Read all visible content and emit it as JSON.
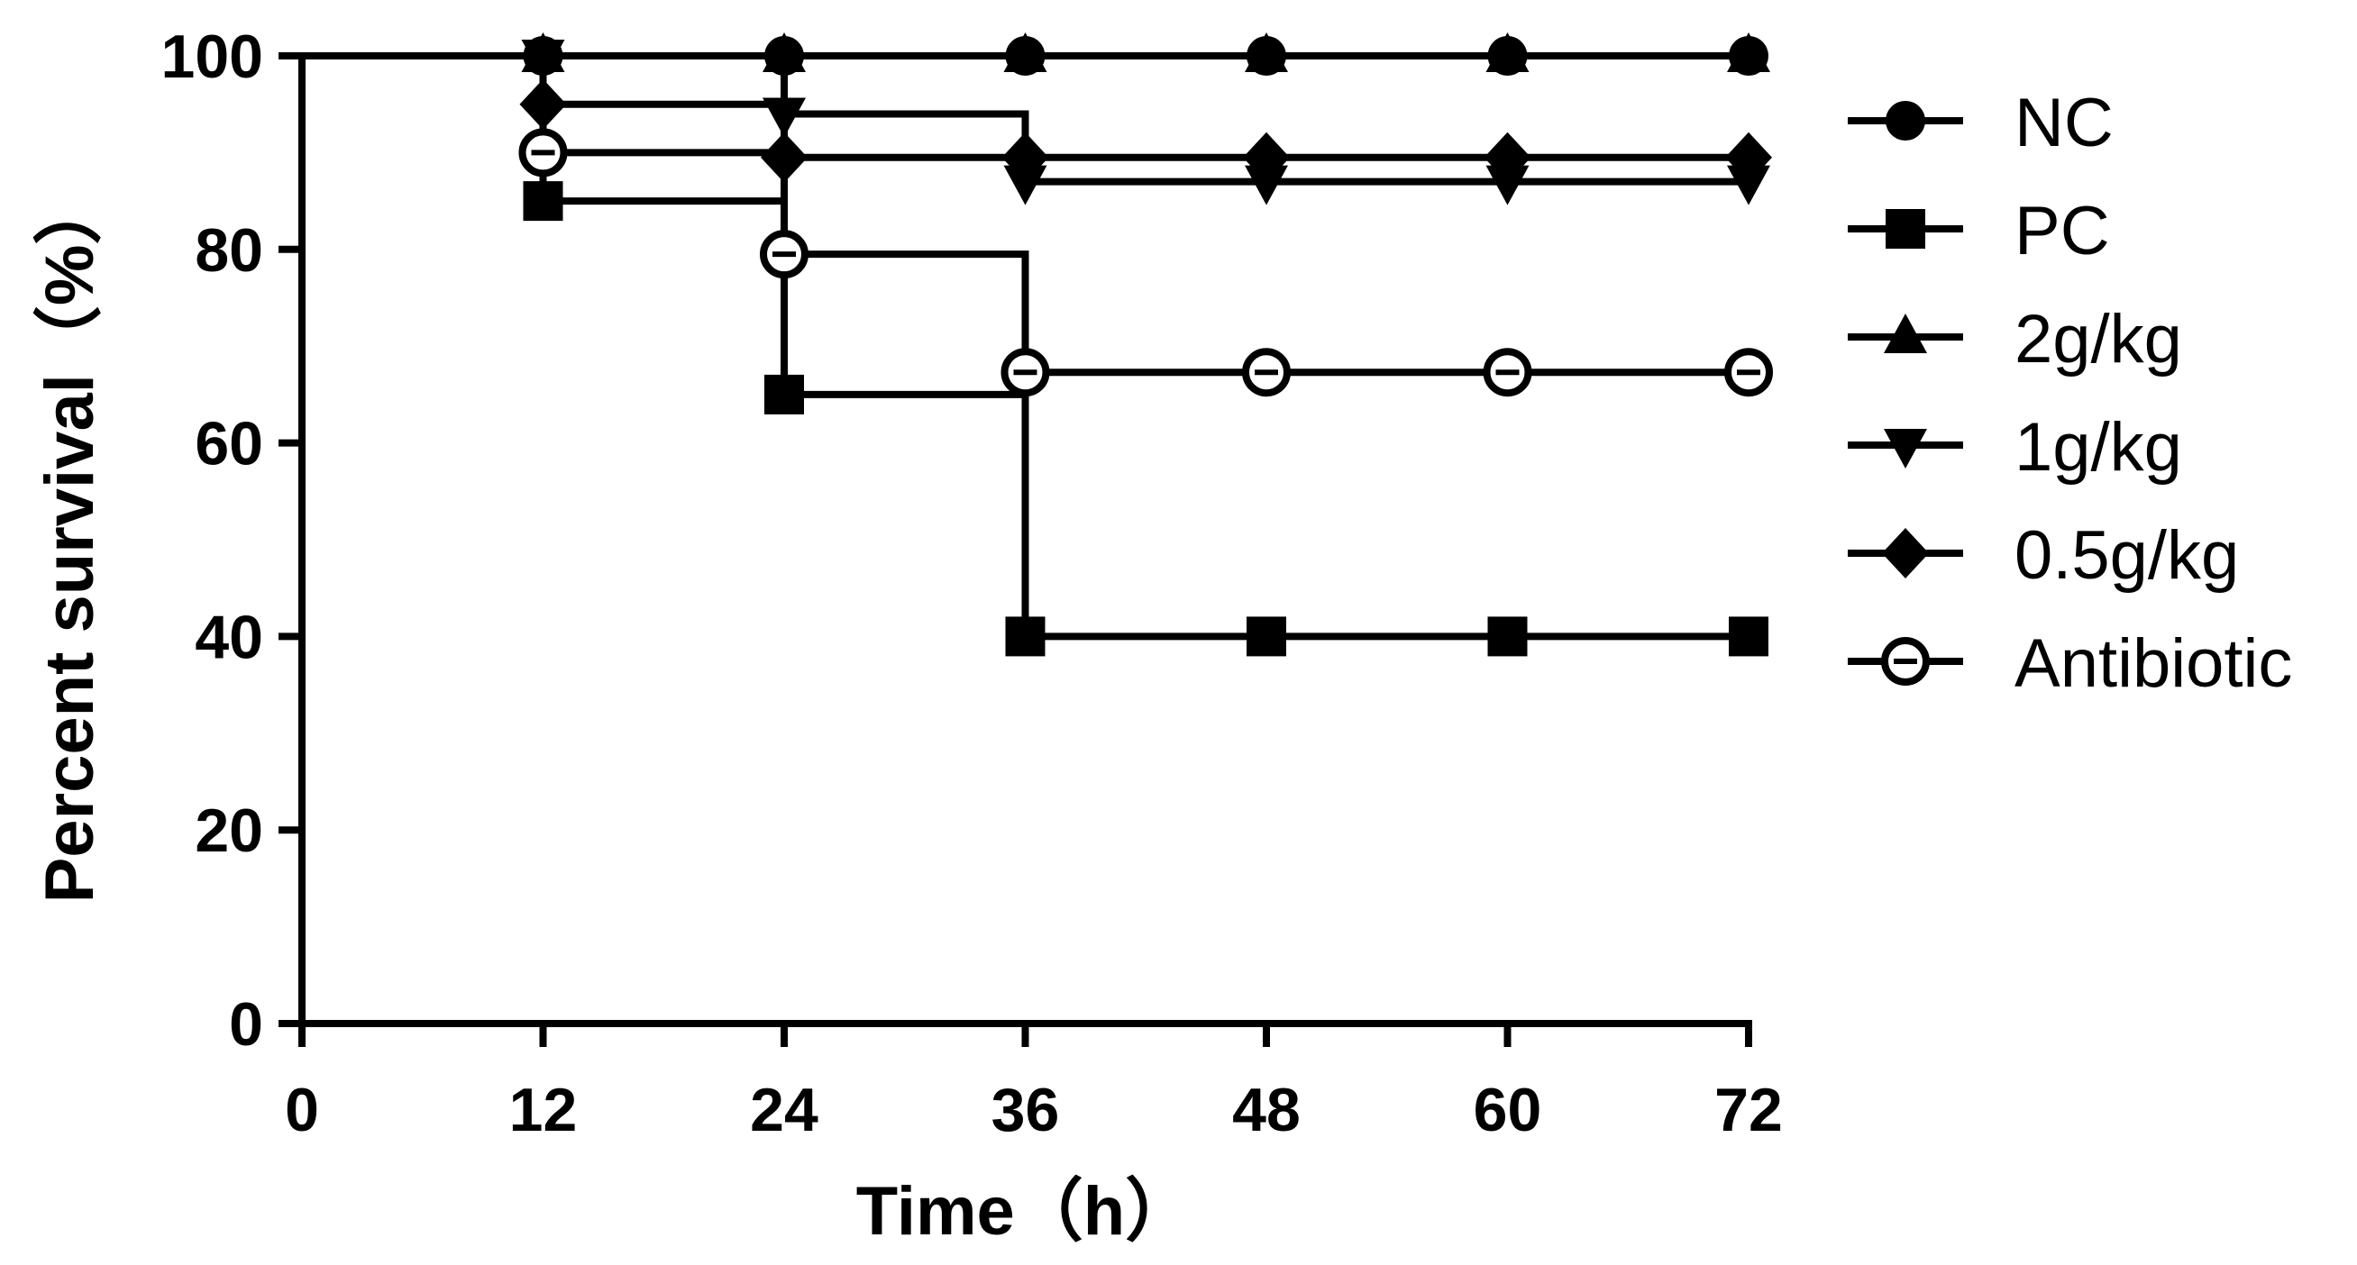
{
  "chart_data": {
    "type": "line",
    "subtype": "kaplan-meier-step",
    "title": "",
    "xlabel": "Time（h）",
    "ylabel": "Percent survival（%）",
    "xlim": [
      0,
      72
    ],
    "ylim": [
      0,
      100
    ],
    "xticks": [
      0,
      12,
      24,
      36,
      48,
      60,
      72
    ],
    "yticks": [
      0,
      20,
      40,
      60,
      80,
      100
    ],
    "x": [
      0,
      12,
      24,
      36,
      48,
      60,
      72
    ],
    "grid": false,
    "legend_position": "right",
    "series": [
      {
        "name": "NC",
        "marker": "circle",
        "values": [
          100,
          100,
          100,
          100,
          100,
          100,
          100
        ]
      },
      {
        "name": "PC",
        "marker": "square",
        "values": [
          100,
          85,
          65,
          40,
          40,
          40,
          40
        ]
      },
      {
        "name": "2g/kg",
        "marker": "triangle-up",
        "values": [
          100,
          100,
          100,
          100,
          100,
          100,
          100
        ]
      },
      {
        "name": "1g/kg",
        "marker": "triangle-down",
        "values": [
          100,
          100,
          94,
          87,
          87,
          87,
          87
        ]
      },
      {
        "name": "0.5g/kg",
        "marker": "diamond",
        "values": [
          100,
          95,
          89.5,
          89.5,
          89.5,
          89.5,
          89.5
        ]
      },
      {
        "name": "Antibiotic",
        "marker": "open-circle",
        "values": [
          100,
          90,
          79.5,
          67.3,
          67.3,
          67.3,
          67.3
        ]
      }
    ]
  }
}
